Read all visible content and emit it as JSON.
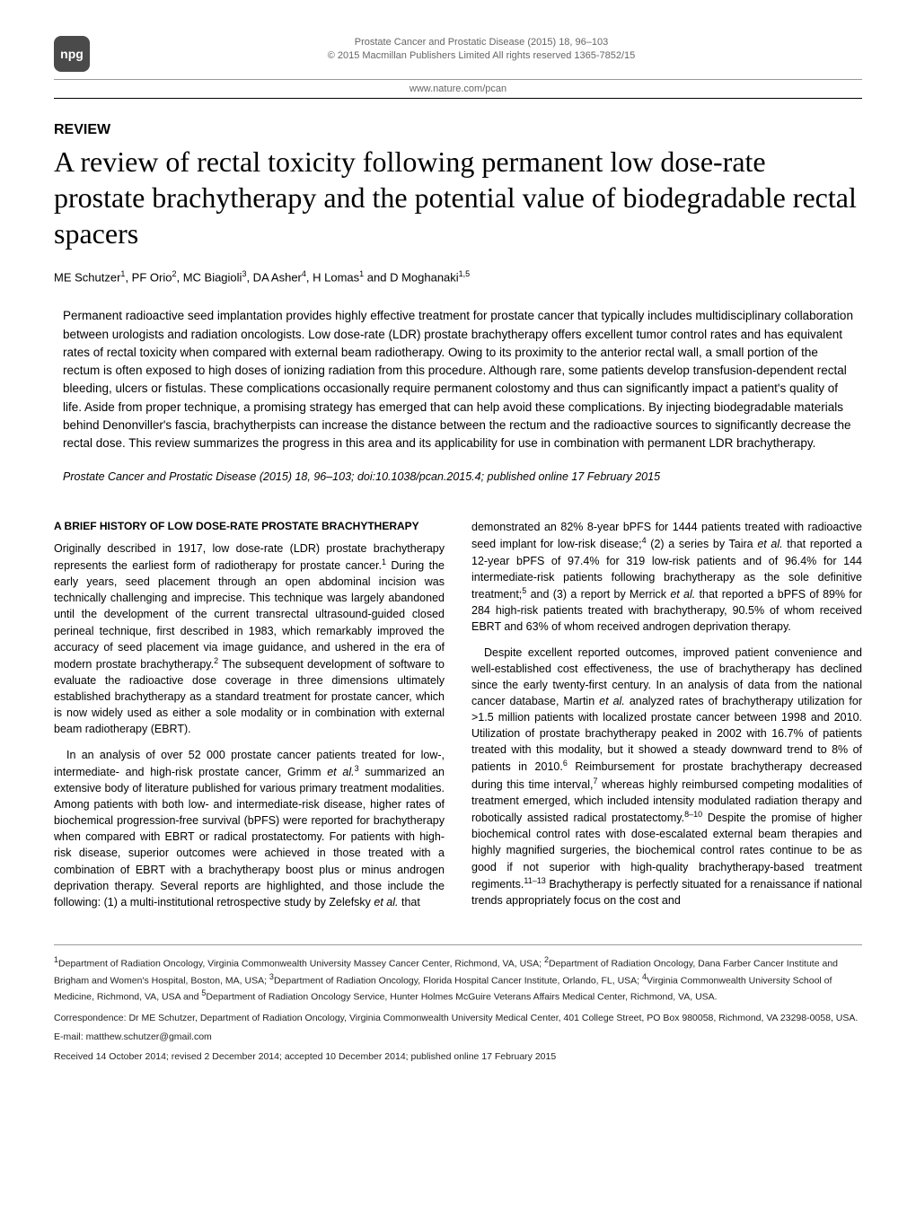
{
  "badge": "npg",
  "journal_line1": "Prostate Cancer and Prostatic Disease (2015) 18, 96–103",
  "journal_line2": "© 2015 Macmillan Publishers Limited  All rights reserved 1365-7852/15",
  "url": "www.nature.com/pcan",
  "review_label": "REVIEW",
  "title": "A review of rectal toxicity following permanent low dose-rate prostate brachytherapy and the potential value of biodegradable rectal spacers",
  "authors_html": "ME Schutzer<sup>1</sup>, PF Orio<sup>2</sup>, MC Biagioli<sup>3</sup>, DA Asher<sup>4</sup>, H Lomas<sup>1</sup> and D Moghanaki<sup>1,5</sup>",
  "abstract": "Permanent radioactive seed implantation provides highly effective treatment for prostate cancer that typically includes multidisciplinary collaboration between urologists and radiation oncologists. Low dose-rate (LDR) prostate brachytherapy offers excellent tumor control rates and has equivalent rates of rectal toxicity when compared with external beam radiotherapy. Owing to its proximity to the anterior rectal wall, a small portion of the rectum is often exposed to high doses of ionizing radiation from this procedure. Although rare, some patients develop transfusion-dependent rectal bleeding, ulcers or fistulas. These complications occasionally require permanent colostomy and thus can significantly impact a patient's quality of life. Aside from proper technique, a promising strategy has emerged that can help avoid these complications. By injecting biodegradable materials behind Denonviller's fascia, brachytherpists can increase the distance between the rectum and the radioactive sources to significantly decrease the rectal dose. This review summarizes the progress in this area and its applicability for use in combination with permanent LDR brachytherapy.",
  "citation_italic": "Prostate Cancer and Prostatic Disease",
  "citation_rest": " (2015) 18, 96–103; doi:10.1038/pcan.2015.4; published online 17 February 2015",
  "section_heading": "A BRIEF HISTORY OF LOW DOSE-RATE PROSTATE BRACHYTHERAPY",
  "left_p1": "Originally described in 1917, low dose-rate (LDR) prostate brachytherapy represents the earliest form of radiotherapy for prostate cancer.<sup>1</sup> During the early years, seed placement through an open abdominal incision was technically challenging and imprecise. This technique was largely abandoned until the development of the current transrectal ultrasound-guided closed perineal technique, first described in 1983, which remarkably improved the accuracy of seed placement via image guidance, and ushered in the era of modern prostate brachytherapy.<sup>2</sup> The subsequent development of software to evaluate the radioactive dose coverage in three dimensions ultimately established brachytherapy as a standard treatment for prostate cancer, which is now widely used as either a sole modality or in combination with external beam radiotherapy (EBRT).",
  "left_p2": "In an analysis of over 52 000 prostate cancer patients treated for low-, intermediate- and high-risk prostate cancer, Grimm <em>et al.</em><sup>3</sup> summarized an extensive body of literature published for various primary treatment modalities. Among patients with both low- and intermediate-risk disease, higher rates of biochemical progression-free survival (bPFS) were reported for brachytherapy when compared with EBRT or radical prostatectomy. For patients with high-risk disease, superior outcomes were achieved in those treated with a combination of EBRT with a brachytherapy boost plus or minus androgen deprivation therapy. Several reports are highlighted, and those include the following: (1) a multi-institutional retrospective study by Zelefsky <em>et al.</em> that",
  "right_p1": "demonstrated an 82% 8-year bPFS for 1444 patients treated with radioactive seed implant for low-risk disease;<sup>4</sup> (2) a series by Taira <em>et al.</em> that reported a 12-year bPFS of 97.4% for 319 low-risk patients and of 96.4% for 144 intermediate-risk patients following brachytherapy as the sole definitive treatment;<sup>5</sup> and (3) a report by Merrick <em>et al.</em> that reported a bPFS of 89% for 284 high-risk patients treated with brachytherapy, 90.5% of whom received EBRT and 63% of whom received androgen deprivation therapy.",
  "right_p2": "Despite excellent reported outcomes, improved patient convenience and well-established cost effectiveness, the use of brachytherapy has declined since the early twenty-first century. In an analysis of data from the national cancer database, Martin <em>et al.</em> analyzed rates of brachytherapy utilization for >1.5 million patients with localized prostate cancer between 1998 and 2010. Utilization of prostate brachytherapy peaked in 2002 with 16.7% of patients treated with this modality, but it showed a steady downward trend to 8% of patients in 2010.<sup>6</sup> Reimbursement for prostate brachytherapy decreased during this time interval,<sup>7</sup> whereas highly reimbursed competing modalities of treatment emerged, which included intensity modulated radiation therapy and robotically assisted radical prostatectomy.<sup>8–10</sup> Despite the promise of higher biochemical control rates with dose-escalated external beam therapies and highly magnified surgeries, the biochemical control rates continue to be as good if not superior with high-quality brachytherapy-based treatment regiments.<sup>11–13</sup> Brachytherapy is perfectly situated for a renaissance if national trends appropriately focus on the cost and",
  "affiliations": "<sup>1</sup>Department of Radiation Oncology, Virginia Commonwealth University Massey Cancer Center, Richmond, VA, USA; <sup>2</sup>Department of Radiation Oncology, Dana Farber Cancer Institute and Brigham and Women's Hospital, Boston, MA, USA; <sup>3</sup>Department of Radiation Oncology, Florida Hospital Cancer Institute, Orlando, FL, USA; <sup>4</sup>Virginia Commonwealth University School of Medicine, Richmond, VA, USA and <sup>5</sup>Department of Radiation Oncology Service, Hunter Holmes McGuire Veterans Affairs Medical Center, Richmond, VA, USA.",
  "correspondence": "Correspondence: Dr ME Schutzer, Department of Radiation Oncology, Virginia Commonwealth University Medical Center, 401 College Street, PO Box 980058, Richmond, VA 23298-0058, USA.",
  "email": "E-mail: matthew.schutzer@gmail.com",
  "dates": "Received 14 October 2014; revised 2 December 2014; accepted 10 December 2014; published online 17 February 2015"
}
